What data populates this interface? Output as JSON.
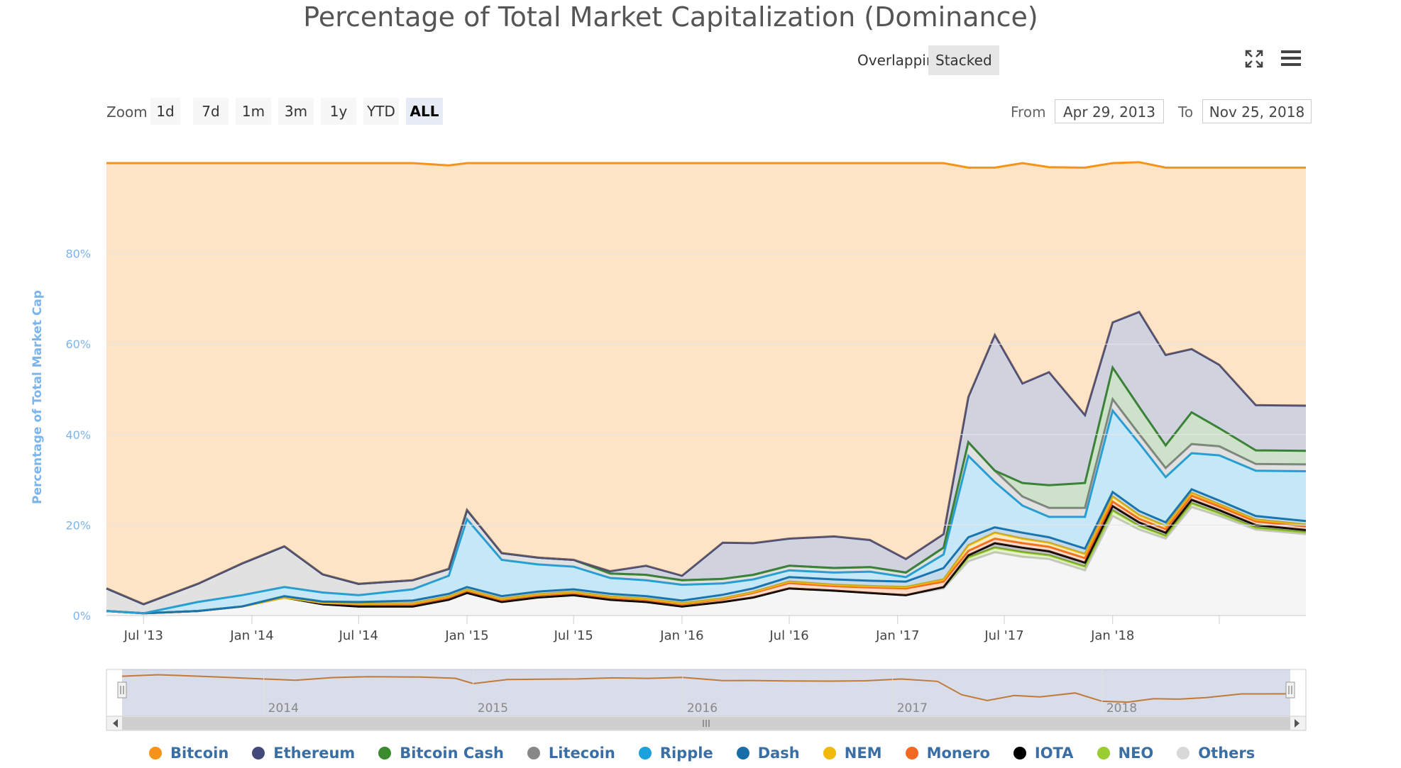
{
  "title": "Percentage of Total Market Capitalization (Dominance)",
  "modes": {
    "overlapping": "Overlapping",
    "stacked": "Stacked",
    "active": "stacked"
  },
  "zoom": {
    "label": "Zoom",
    "buttons": [
      "1d",
      "7d",
      "1m",
      "3m",
      "1y",
      "YTD",
      "ALL"
    ],
    "active": "ALL"
  },
  "range": {
    "from_label": "From",
    "from_value": "Apr 29, 2013",
    "to_label": "To",
    "to_value": "Nov 25, 2018"
  },
  "navigator": {
    "year_labels": [
      "2014",
      "2015",
      "2016",
      "2017",
      "2018"
    ]
  },
  "colors": {
    "Bitcoin": "#f7931a",
    "Ethereum": "#434a7a",
    "Bitcoin Cash": "#3a8a2e",
    "Litecoin": "#888888",
    "Ripple": "#1ba1dc",
    "Dash": "#1a6ea8",
    "NEM": "#f0b90b",
    "Monero": "#f26822",
    "IOTA": "#000000",
    "NEO": "#9acd32",
    "Others": "#d8d8d8"
  },
  "chart_data": {
    "type": "area",
    "stacking": "stacked",
    "title": "Percentage of Total Market Capitalization (Dominance)",
    "ylabel": "Percentage of Total Market Cap",
    "ylim": [
      0,
      100
    ],
    "y_ticks": [
      "0%",
      "20%",
      "40%",
      "60%",
      "80%"
    ],
    "x_tick_labels": [
      "Jul '13",
      "Jan '14",
      "Jul '14",
      "Jan '15",
      "Jul '15",
      "Jan '16",
      "Jul '16",
      "Jan '17",
      "Jul '17",
      "Jan '18"
    ],
    "x": [
      "2013-04-29",
      "2013-07-01",
      "2013-10-01",
      "2013-12-15",
      "2014-02-25",
      "2014-05-01",
      "2014-07-01",
      "2014-10-01",
      "2014-12-01",
      "2015-01-01",
      "2015-03-01",
      "2015-05-01",
      "2015-07-01",
      "2015-09-01",
      "2015-11-01",
      "2016-01-01",
      "2016-03-10",
      "2016-05-01",
      "2016-07-01",
      "2016-09-15",
      "2016-11-15",
      "2017-01-15",
      "2017-03-20",
      "2017-05-01",
      "2017-06-15",
      "2017-08-01",
      "2017-09-15",
      "2017-11-15",
      "2018-01-01",
      "2018-02-15",
      "2018-04-01",
      "2018-05-15",
      "2018-07-01",
      "2018-09-01",
      "2018-11-25"
    ],
    "series": [
      {
        "name": "Others",
        "values": [
          1.0,
          0.5,
          1.0,
          2.0,
          4.0,
          2.5,
          2.0,
          2.0,
          3.5,
          5.0,
          3.0,
          4.0,
          4.5,
          3.5,
          3.0,
          2.0,
          3.0,
          4.0,
          6.0,
          5.5,
          5.0,
          4.5,
          6.0,
          12.0,
          14.0,
          13.0,
          12.5,
          10.0,
          22.0,
          19.0,
          17.0,
          24.0,
          22.0,
          19.0,
          18.0
        ]
      },
      {
        "name": "NEO",
        "values": [
          0,
          0,
          0,
          0,
          0,
          0,
          0,
          0,
          0,
          0,
          0,
          0,
          0,
          0,
          0,
          0,
          0,
          0,
          0,
          0,
          0,
          0,
          0.3,
          0.8,
          1.0,
          1.0,
          0.8,
          0.8,
          1.2,
          0.8,
          0.6,
          0.8,
          0.6,
          0.4,
          0.4
        ]
      },
      {
        "name": "IOTA",
        "values": [
          0,
          0,
          0,
          0,
          0,
          0,
          0,
          0,
          0,
          0,
          0,
          0,
          0,
          0,
          0,
          0,
          0,
          0,
          0,
          0,
          0,
          0,
          0,
          0.5,
          1.0,
          1.0,
          0.9,
          0.9,
          1.0,
          0.8,
          0.7,
          0.8,
          0.7,
          0.6,
          0.5
        ]
      },
      {
        "name": "Monero",
        "values": [
          0,
          0,
          0,
          0,
          0,
          0.3,
          0.5,
          0.5,
          0.5,
          0.5,
          0.5,
          0.5,
          0.5,
          0.5,
          0.5,
          0.5,
          0.6,
          1.0,
          1.2,
          1.0,
          1.2,
          1.5,
          1.2,
          1.0,
          1.0,
          1.0,
          1.0,
          1.0,
          1.0,
          0.8,
          0.8,
          0.9,
          0.8,
          0.8,
          0.8
        ]
      },
      {
        "name": "NEM",
        "values": [
          0,
          0,
          0,
          0,
          0,
          0,
          0.1,
          0.2,
          0.2,
          0.2,
          0.2,
          0.2,
          0.2,
          0.2,
          0.2,
          0.2,
          0.2,
          0.2,
          0.3,
          0.3,
          0.3,
          0.3,
          0.5,
          1.2,
          1.3,
          1.0,
          0.9,
          0.9,
          1.1,
          0.8,
          0.7,
          0.6,
          0.5,
          0.4,
          0.4
        ]
      },
      {
        "name": "Dash",
        "values": [
          0,
          0,
          0,
          0,
          0.3,
          0.3,
          0.4,
          0.6,
          0.6,
          0.6,
          0.6,
          0.6,
          0.6,
          0.6,
          0.6,
          0.6,
          0.8,
          0.8,
          1.0,
          1.2,
          1.2,
          1.2,
          2.5,
          1.8,
          1.2,
          1.3,
          1.2,
          1.2,
          1.0,
          0.9,
          0.8,
          0.8,
          0.8,
          0.8,
          0.8
        ]
      },
      {
        "name": "Ripple",
        "values": [
          0,
          0,
          2.0,
          2.5,
          2.0,
          2.0,
          1.5,
          2.5,
          4.0,
          15.0,
          8.0,
          6.0,
          5.0,
          3.5,
          3.5,
          3.5,
          2.5,
          2.0,
          1.5,
          1.5,
          2.0,
          1.0,
          3.0,
          18.0,
          10.0,
          6.0,
          4.5,
          7.0,
          18.0,
          15.0,
          10.0,
          8.0,
          10.0,
          10.0,
          11.0
        ]
      },
      {
        "name": "Litecoin",
        "values": [
          5.0,
          2.0,
          4.0,
          7.0,
          9.0,
          4.0,
          2.5,
          2.0,
          1.5,
          2.0,
          1.5,
          1.5,
          1.5,
          1.0,
          1.2,
          1.0,
          1.0,
          1.0,
          1.0,
          1.0,
          1.0,
          1.0,
          1.5,
          3.0,
          2.5,
          2.0,
          2.0,
          2.0,
          2.5,
          2.0,
          2.0,
          2.0,
          2.0,
          1.5,
          1.5
        ]
      },
      {
        "name": "Bitcoin Cash",
        "values": [
          0,
          0,
          0,
          0,
          0,
          0,
          0,
          0,
          0,
          0,
          0,
          0,
          0,
          0,
          0,
          0,
          0,
          0,
          0,
          0,
          0,
          0,
          0,
          0,
          0,
          3.0,
          5.0,
          5.5,
          7.0,
          6.0,
          5.0,
          7.0,
          4.0,
          3.0,
          3.0
        ]
      },
      {
        "name": "Ethereum",
        "values": [
          0,
          0,
          0,
          0,
          0,
          0,
          0,
          0,
          0,
          0,
          0,
          0,
          0,
          0.5,
          2.0,
          1.0,
          8.0,
          7.0,
          6.0,
          7.0,
          6.0,
          3.0,
          3.0,
          10.0,
          30.0,
          22.0,
          25.0,
          15.0,
          10.0,
          21.0,
          20.0,
          14.0,
          14.0,
          10.0,
          10.0
        ]
      },
      {
        "name": "Bitcoin",
        "values": [
          94.0,
          97.5,
          93.0,
          88.5,
          84.7,
          90.9,
          93.0,
          92.2,
          89.2,
          76.7,
          86.2,
          87.2,
          87.7,
          90.2,
          89.0,
          91.2,
          83.9,
          84.0,
          83.0,
          82.5,
          83.3,
          87.5,
          82.0,
          50.7,
          37.0,
          48.7,
          45.3,
          54.7,
          35.2,
          33.1,
          41.4,
          40.1,
          43.6,
          52.5,
          52.6
        ]
      }
    ]
  }
}
